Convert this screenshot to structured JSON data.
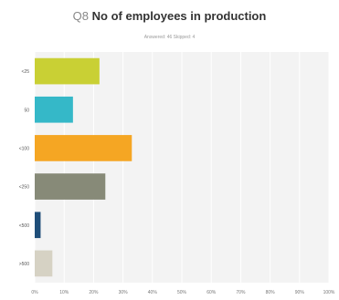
{
  "question": {
    "number": "Q8",
    "text": "No of employees in production"
  },
  "subtitle": "Answered: 46    Skipped: 4",
  "chart_data": {
    "type": "bar",
    "orientation": "horizontal",
    "categories": [
      "<25",
      "50",
      "<100",
      "<250",
      "<500",
      ">500"
    ],
    "values": [
      22,
      13,
      33,
      24,
      2,
      6
    ],
    "colors": [
      "#c9d034",
      "#35b8c8",
      "#f5a623",
      "#878a78",
      "#1f4e79",
      "#d6d2c4"
    ],
    "xlim": [
      0,
      100
    ],
    "xticks": [
      "0%",
      "10%",
      "20%",
      "30%",
      "40%",
      "50%",
      "60%",
      "70%",
      "80%",
      "90%",
      "100%"
    ],
    "grid": true,
    "plot_background": "#f3f3f3",
    "grid_color": "#ffffff"
  }
}
